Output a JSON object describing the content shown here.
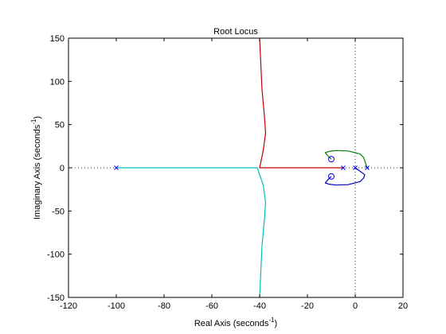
{
  "chart_data": {
    "type": "line",
    "title": "Root Locus",
    "xlabel": "Real Axis (seconds",
    "ylabel": "Imaginary Axis (seconds",
    "label_exponent": "-1",
    "label_close": ")",
    "xlim": [
      -120,
      20
    ],
    "ylim": [
      -150,
      150
    ],
    "xticks": [
      -120,
      -100,
      -80,
      -60,
      -40,
      -20,
      0,
      20
    ],
    "yticks": [
      -150,
      -100,
      -50,
      0,
      50,
      100,
      150
    ],
    "grid": false,
    "background": "#ffffff",
    "axis_color": "#000000",
    "reference_line_color": "#303030",
    "poles": [
      {
        "x": -100,
        "y": 0
      },
      {
        "x": -5,
        "y": 0
      },
      {
        "x": 0,
        "y": 0
      },
      {
        "x": 5,
        "y": 0
      }
    ],
    "zeros": [
      {
        "x": -10,
        "y": 10
      },
      {
        "x": -10,
        "y": -10
      }
    ],
    "marker_color": "#0000ff",
    "series": [
      {
        "color": "#00bfbf",
        "x": [
          -100,
          -80,
          -60,
          -41,
          -38.5,
          -37.5,
          -38,
          -39,
          -39.5,
          -40
        ],
        "y": [
          0,
          0,
          0,
          0,
          -20,
          -40,
          -60,
          -90,
          -120,
          -150
        ]
      },
      {
        "color": "#bf0000",
        "x": [
          -5,
          -15,
          -25,
          -35,
          -40,
          -38.5,
          -37.5,
          -38,
          -39,
          -39.5,
          -40
        ],
        "y": [
          0,
          0,
          0,
          0,
          0,
          20,
          40,
          60,
          90,
          120,
          150
        ]
      },
      {
        "color": "#008000",
        "x": [
          -10,
          -11.5,
          -12.5,
          -11,
          -8,
          -3,
          2,
          3.5,
          4,
          4.5,
          5
        ],
        "y": [
          10,
          14,
          17.5,
          19,
          20,
          19.5,
          16,
          12,
          8,
          4,
          0
        ]
      },
      {
        "color": "#0000bf",
        "x": [
          0,
          2,
          4,
          3.5,
          2,
          -3,
          -8,
          -11,
          -12.5,
          -11.5,
          -10
        ],
        "y": [
          0,
          -4,
          -8,
          -12,
          -16,
          -19.5,
          -20,
          -19,
          -17.5,
          -14,
          -10
        ]
      }
    ]
  }
}
